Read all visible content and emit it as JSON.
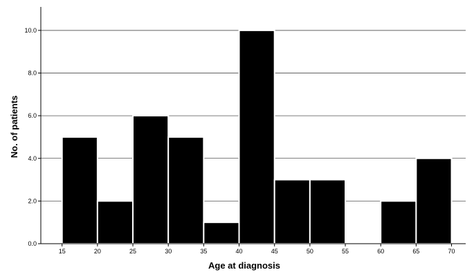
{
  "chart_data": {
    "type": "bar",
    "title": "",
    "xlabel": "Age at diagnosis",
    "ylabel": "No. of patients",
    "bins": [
      {
        "start": 15,
        "end": 20,
        "value": 5
      },
      {
        "start": 20,
        "end": 25,
        "value": 2
      },
      {
        "start": 25,
        "end": 30,
        "value": 6
      },
      {
        "start": 30,
        "end": 35,
        "value": 5
      },
      {
        "start": 35,
        "end": 40,
        "value": 1
      },
      {
        "start": 40,
        "end": 45,
        "value": 10
      },
      {
        "start": 45,
        "end": 50,
        "value": 3
      },
      {
        "start": 50,
        "end": 55,
        "value": 3
      },
      {
        "start": 55,
        "end": 60,
        "value": 0
      },
      {
        "start": 60,
        "end": 65,
        "value": 2
      },
      {
        "start": 65,
        "end": 70,
        "value": 4
      }
    ],
    "x_ticks": [
      "15",
      "20",
      "25",
      "30",
      "35",
      "40",
      "45",
      "50",
      "55",
      "60",
      "65",
      "70"
    ],
    "y_ticks": [
      "0.0",
      "2.0",
      "4.0",
      "6.0",
      "8.0",
      "10.0"
    ],
    "xlim": [
      12,
      72
    ],
    "ylim": [
      0,
      11.1
    ],
    "grid": true,
    "bar_color": "#000000",
    "bar_edge_color": "#ffffff"
  }
}
